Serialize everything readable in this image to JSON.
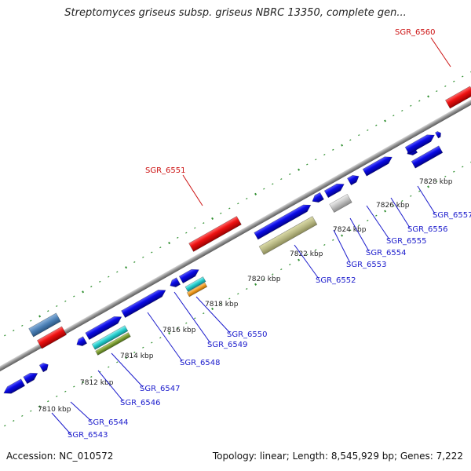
{
  "title": "Streptomyces griseus subsp. griseus NBRC 13350, complete gen...",
  "footer": {
    "accession": "Accession: NC_010572",
    "topology": "Topology: linear; Length: 8,545,929 bp; Genes: 7,222"
  },
  "colors": {
    "background": "#ffffff",
    "backbone": "#8f8f8f",
    "tick": "#2f8f2f",
    "cds_blue": "#0a0ae6",
    "highlight_red": "#ee1111",
    "steelblue": "#4a7fb5",
    "khaki": "#b8b884",
    "gray": "#bfbfbf",
    "cyan": "#22cccc",
    "orange": "#ee9922",
    "olive": "#7a9a33",
    "label_blue": "#1a1acc",
    "label_red": "#cc1111"
  },
  "kbp_ticks": [
    "7810 kbp",
    "7812 kbp",
    "7814 kbp",
    "7816 kbp",
    "7818 kbp",
    "7820 kbp",
    "7822 kbp",
    "7824 kbp",
    "7826 kbp",
    "7828 kbp"
  ],
  "gene_labels": [
    {
      "name": "SGR_6543",
      "highlight": false
    },
    {
      "name": "SGR_6544",
      "highlight": false
    },
    {
      "name": "SGR_6546",
      "highlight": false
    },
    {
      "name": "SGR_6547",
      "highlight": false
    },
    {
      "name": "SGR_6548",
      "highlight": false
    },
    {
      "name": "SGR_6549",
      "highlight": false
    },
    {
      "name": "SGR_6550",
      "highlight": false
    },
    {
      "name": "SGR_6551",
      "highlight": true
    },
    {
      "name": "SGR_6552",
      "highlight": false
    },
    {
      "name": "SGR_6553",
      "highlight": false
    },
    {
      "name": "SGR_6554",
      "highlight": false
    },
    {
      "name": "SGR_6555",
      "highlight": false
    },
    {
      "name": "SGR_6556",
      "highlight": false
    },
    {
      "name": "SGR_6557",
      "highlight": false
    },
    {
      "name": "SGR_6560",
      "highlight": true
    }
  ]
}
